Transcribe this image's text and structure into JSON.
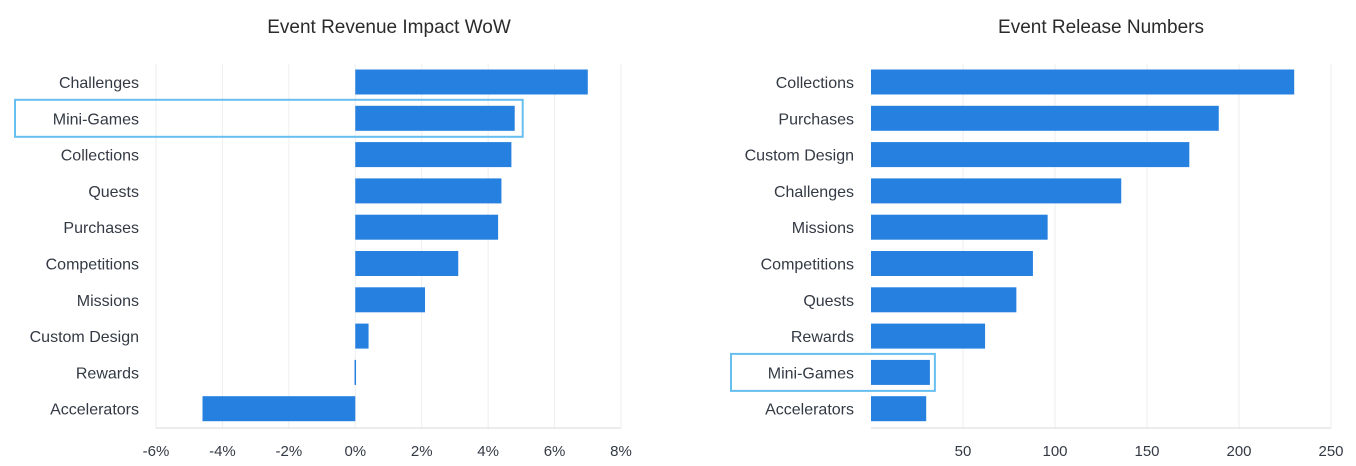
{
  "colors": {
    "bar": "#2580e0",
    "highlight": "#67bff0",
    "text": "#333a44",
    "title": "#2b2b2b"
  },
  "chart_data": [
    {
      "type": "bar",
      "orientation": "horizontal",
      "title": "Event Revenue Impact WoW",
      "categories": [
        "Challenges",
        "Mini-Games",
        "Collections",
        "Quests",
        "Purchases",
        "Competitions",
        "Missions",
        "Custom Design",
        "Rewards",
        "Accelerators"
      ],
      "values": [
        7.0,
        4.8,
        4.7,
        4.4,
        4.3,
        3.1,
        2.1,
        0.4,
        0.0,
        -4.6
      ],
      "unit": "%",
      "xlim": [
        -6,
        8
      ],
      "xticks": [
        -6,
        -4,
        -2,
        0,
        2,
        4,
        6,
        8
      ],
      "xtick_labels": [
        "-6%",
        "-4%",
        "-2%",
        "0%",
        "2%",
        "4%",
        "6%",
        "8%"
      ],
      "grid": true,
      "highlight_category": "Mini-Games"
    },
    {
      "type": "bar",
      "orientation": "horizontal",
      "title": "Event Release Numbers",
      "categories": [
        "Collections",
        "Purchases",
        "Custom Design",
        "Challenges",
        "Missions",
        "Competitions",
        "Quests",
        "Rewards",
        "Mini-Games",
        "Accelerators"
      ],
      "values": [
        230,
        189,
        173,
        136,
        96,
        88,
        79,
        62,
        32,
        30
      ],
      "xlim": [
        0,
        250
      ],
      "xticks": [
        50,
        100,
        150,
        200,
        250
      ],
      "xtick_labels": [
        "50",
        "100",
        "150",
        "200",
        "250"
      ],
      "grid": true,
      "highlight_category": "Mini-Games"
    }
  ]
}
